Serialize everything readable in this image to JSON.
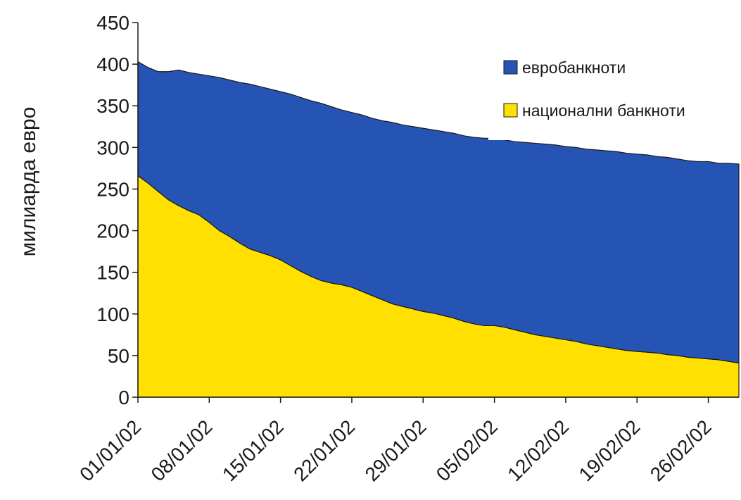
{
  "chart_data": {
    "type": "area",
    "stacked": true,
    "title": "",
    "xlabel": "",
    "ylabel": "милиарда евро",
    "ylim": [
      0,
      450
    ],
    "yticks": [
      0,
      50,
      100,
      150,
      200,
      250,
      300,
      350,
      400,
      450
    ],
    "grid": false,
    "legend_position": "top-right",
    "xtick_labels": [
      "01/01/02",
      "08/01/02",
      "15/01/02",
      "22/01/02",
      "29/01/02",
      "05/02/02",
      "12/02/02",
      "19/02/02",
      "26/02/02"
    ],
    "x": [
      "01/01/02",
      "02/01/02",
      "03/01/02",
      "04/01/02",
      "05/01/02",
      "06/01/02",
      "07/01/02",
      "08/01/02",
      "09/01/02",
      "10/01/02",
      "11/01/02",
      "12/01/02",
      "13/01/02",
      "14/01/02",
      "15/01/02",
      "16/01/02",
      "17/01/02",
      "18/01/02",
      "19/01/02",
      "20/01/02",
      "21/01/02",
      "22/01/02",
      "23/01/02",
      "24/01/02",
      "25/01/02",
      "26/01/02",
      "27/01/02",
      "28/01/02",
      "29/01/02",
      "30/01/02",
      "31/01/02",
      "01/02/02",
      "02/02/02",
      "03/02/02",
      "04/02/02",
      "05/02/02",
      "06/02/02",
      "07/02/02",
      "08/02/02",
      "09/02/02",
      "10/02/02",
      "11/02/02",
      "12/02/02",
      "13/02/02",
      "14/02/02",
      "15/02/02",
      "16/02/02",
      "17/02/02",
      "18/02/02",
      "19/02/02",
      "20/02/02",
      "21/02/02",
      "22/02/02",
      "23/02/02",
      "24/02/02",
      "25/02/02",
      "26/02/02",
      "27/02/02",
      "28/02/02",
      "01/03/02"
    ],
    "series": [
      {
        "name": "национални банкноти",
        "color": "#ffe000",
        "values": [
          266,
          257,
          247,
          237,
          230,
          224,
          219,
          210,
          200,
          193,
          185,
          178,
          174,
          170,
          165,
          158,
          151,
          145,
          140,
          137,
          135,
          132,
          127,
          122,
          117,
          112,
          109,
          106,
          103,
          101,
          98,
          95,
          91,
          88,
          86,
          86,
          84,
          81,
          78,
          75,
          73,
          71,
          69,
          67,
          64,
          62,
          60,
          58,
          56,
          55,
          54,
          53,
          51,
          50,
          48,
          47,
          46,
          45,
          43,
          41
        ],
        "label_visible": true
      },
      {
        "name": "евробанкноти",
        "color": "#2654b4",
        "values": [
          137,
          139,
          144,
          154,
          163,
          166,
          169,
          176,
          184,
          188,
          193,
          198,
          199,
          200,
          202,
          206,
          209,
          211,
          213,
          212,
          210,
          210,
          212,
          213,
          215,
          218,
          218,
          219,
          220,
          220,
          221,
          222,
          223,
          224,
          225,
          225,
          225,
          226,
          228,
          230,
          231,
          232,
          232,
          233,
          234,
          235,
          236,
          237,
          237,
          237,
          237,
          236,
          237,
          236,
          236,
          236,
          237,
          236,
          238,
          239
        ]
      }
    ],
    "legend": [
      {
        "label": "евробанкноти",
        "color": "#2654b4"
      },
      {
        "label": "национални банкноти",
        "color": "#ffe000"
      }
    ]
  }
}
